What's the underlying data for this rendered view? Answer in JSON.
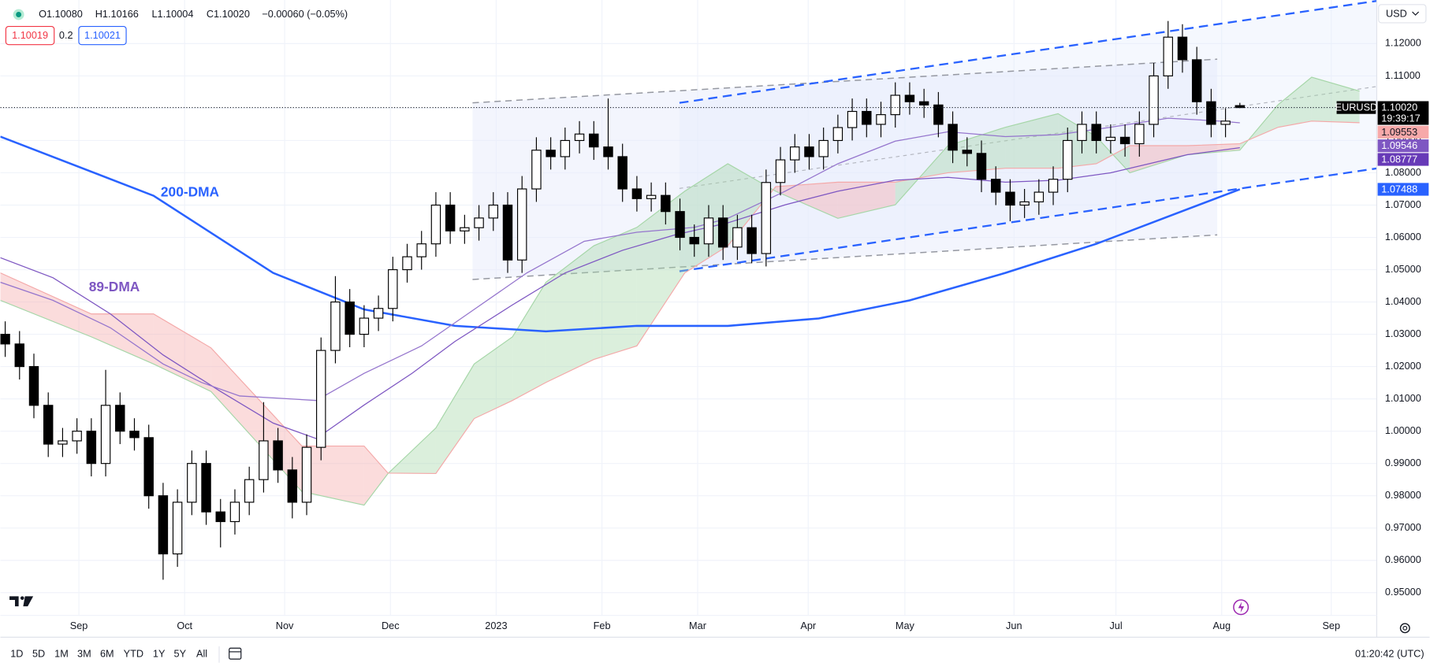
{
  "chart_data": {
    "type": "candlestick",
    "header": {
      "ohlc": [
        "O1.10080",
        "H1.10166",
        "L1.10004",
        "C1.10020",
        "−0.00060 (−0.05%)"
      ],
      "bid": "1.10019",
      "spread": "0.2",
      "ask": "1.10021",
      "currency": "USD"
    },
    "xlim": [
      0,
      287.6
    ],
    "ylim": [
      0.9362,
      1.1335
    ],
    "grid": true,
    "xticks": [
      {
        "value": 16.4,
        "label": "Sep"
      },
      {
        "value": 38.5,
        "label": "Oct"
      },
      {
        "value": 59.4,
        "label": "Nov"
      },
      {
        "value": 81.5,
        "label": "Dec"
      },
      {
        "value": 103.6,
        "label": "2023"
      },
      {
        "value": 125.7,
        "label": "Feb"
      },
      {
        "value": 145.7,
        "label": "Mar"
      },
      {
        "value": 168.8,
        "label": "Apr"
      },
      {
        "value": 189,
        "label": "May"
      },
      {
        "value": 211.8,
        "label": "Jun"
      },
      {
        "value": 233.1,
        "label": "Jul"
      },
      {
        "value": 255.2,
        "label": "Aug"
      },
      {
        "value": 278.1,
        "label": "Sep"
      }
    ],
    "yticks": [
      {
        "value": 0.95,
        "label": "0.95000"
      },
      {
        "value": 0.96,
        "label": "0.96000"
      },
      {
        "value": 0.97,
        "label": "0.97000"
      },
      {
        "value": 0.98,
        "label": "0.98000"
      },
      {
        "value": 0.99,
        "label": "0.99000"
      },
      {
        "value": 1.0,
        "label": "1.00000"
      },
      {
        "value": 1.01,
        "label": "1.01000"
      },
      {
        "value": 1.02,
        "label": "1.02000"
      },
      {
        "value": 1.03,
        "label": "1.03000"
      },
      {
        "value": 1.04,
        "label": "1.04000"
      },
      {
        "value": 1.05,
        "label": "1.05000"
      },
      {
        "value": 1.06,
        "label": "1.06000"
      },
      {
        "value": 1.07,
        "label": "1.07000"
      },
      {
        "value": 1.08,
        "label": "1.08000"
      },
      {
        "value": 1.09,
        "label": "1.09000"
      },
      {
        "value": 1.1,
        "label": "1.10000"
      },
      {
        "value": 1.11,
        "label": "1.11000"
      },
      {
        "value": 1.12,
        "label": "1.12000"
      }
    ],
    "series": [
      {
        "name": "EURUSD",
        "up_color": "#ffffff",
        "down_color": "#000000",
        "x": [
          1,
          4,
          7,
          10,
          13,
          16,
          19,
          22,
          25,
          28,
          31,
          34,
          37,
          40,
          43,
          46,
          49,
          52,
          55,
          58,
          61,
          64,
          67,
          70,
          73,
          76,
          79,
          82,
          85,
          88,
          91,
          94,
          97,
          100,
          103,
          106,
          109,
          112,
          115,
          118,
          121,
          124,
          127,
          130,
          133,
          136,
          139,
          142,
          145,
          148,
          151,
          154,
          157,
          160,
          163,
          166,
          169,
          172,
          175,
          178,
          181,
          184,
          187,
          190,
          193,
          196,
          199,
          202,
          205,
          208,
          211,
          214,
          217,
          220,
          223,
          226,
          229,
          232,
          235,
          238,
          241,
          244,
          247,
          250,
          253,
          256,
          259
        ],
        "open": [
          1.03,
          1.027,
          1.02,
          1.008,
          0.996,
          0.997,
          1.0,
          0.99,
          1.008,
          1.0,
          0.998,
          0.98,
          0.962,
          0.978,
          0.99,
          0.975,
          0.972,
          0.978,
          0.985,
          0.997,
          0.988,
          0.978,
          0.995,
          1.025,
          1.04,
          1.03,
          1.035,
          1.038,
          1.05,
          1.054,
          1.058,
          1.07,
          1.062,
          1.063,
          1.066,
          1.07,
          1.053,
          1.075,
          1.087,
          1.085,
          1.09,
          1.092,
          1.088,
          1.085,
          1.075,
          1.072,
          1.073,
          1.068,
          1.06,
          1.058,
          1.066,
          1.057,
          1.063,
          1.055,
          1.077,
          1.084,
          1.088,
          1.085,
          1.09,
          1.094,
          1.099,
          1.095,
          1.098,
          1.104,
          1.102,
          1.101,
          1.095,
          1.087,
          1.086,
          1.078,
          1.074,
          1.07,
          1.071,
          1.074,
          1.078,
          1.09,
          1.095,
          1.09,
          1.091,
          1.089,
          1.095,
          1.11,
          1.122,
          1.115,
          1.102,
          1.095,
          1.1008
        ],
        "high": [
          1.034,
          1.031,
          1.024,
          1.012,
          1.001,
          1.004,
          1.004,
          1.019,
          1.012,
          1.004,
          1.002,
          0.984,
          0.982,
          0.994,
          0.994,
          0.979,
          0.982,
          0.989,
          1.009,
          1.001,
          0.992,
          0.999,
          1.029,
          1.048,
          1.044,
          1.039,
          1.042,
          1.054,
          1.058,
          1.062,
          1.074,
          1.074,
          1.067,
          1.07,
          1.074,
          1.074,
          1.079,
          1.091,
          1.091,
          1.094,
          1.096,
          1.096,
          1.103,
          1.089,
          1.079,
          1.077,
          1.077,
          1.072,
          1.064,
          1.07,
          1.07,
          1.067,
          1.067,
          1.081,
          1.088,
          1.092,
          1.092,
          1.094,
          1.098,
          1.103,
          1.103,
          1.102,
          1.108,
          1.108,
          1.106,
          1.105,
          1.099,
          1.091,
          1.09,
          1.082,
          1.078,
          1.075,
          1.078,
          1.082,
          1.094,
          1.099,
          1.099,
          1.095,
          1.095,
          1.099,
          1.114,
          1.127,
          1.126,
          1.119,
          1.106,
          1.1,
          1.10166
        ],
        "low": [
          1.023,
          1.016,
          1.004,
          0.992,
          0.992,
          0.993,
          0.986,
          0.986,
          0.996,
          0.994,
          0.976,
          0.954,
          0.958,
          0.974,
          0.971,
          0.964,
          0.968,
          0.974,
          0.981,
          0.984,
          0.973,
          0.974,
          0.991,
          1.021,
          1.026,
          1.026,
          1.031,
          1.034,
          1.046,
          1.05,
          1.054,
          1.058,
          1.058,
          1.059,
          1.062,
          1.049,
          1.049,
          1.071,
          1.081,
          1.081,
          1.086,
          1.084,
          1.081,
          1.071,
          1.068,
          1.068,
          1.064,
          1.056,
          1.054,
          1.054,
          1.053,
          1.053,
          1.052,
          1.051,
          1.073,
          1.08,
          1.081,
          1.081,
          1.086,
          1.09,
          1.091,
          1.091,
          1.094,
          1.098,
          1.097,
          1.091,
          1.083,
          1.082,
          1.074,
          1.07,
          1.065,
          1.066,
          1.067,
          1.07,
          1.074,
          1.086,
          1.086,
          1.086,
          1.085,
          1.085,
          1.091,
          1.106,
          1.111,
          1.098,
          1.091,
          1.091,
          1.10004
        ],
        "close": [
          1.027,
          1.02,
          1.008,
          0.996,
          0.997,
          1.0,
          0.99,
          1.008,
          1.0,
          0.998,
          0.98,
          0.962,
          0.978,
          0.99,
          0.975,
          0.972,
          0.978,
          0.985,
          0.997,
          0.988,
          0.978,
          0.995,
          1.025,
          1.04,
          1.03,
          1.035,
          1.038,
          1.05,
          1.054,
          1.058,
          1.07,
          1.062,
          1.063,
          1.066,
          1.07,
          1.053,
          1.075,
          1.087,
          1.085,
          1.09,
          1.092,
          1.088,
          1.085,
          1.075,
          1.072,
          1.073,
          1.068,
          1.06,
          1.058,
          1.066,
          1.057,
          1.063,
          1.055,
          1.077,
          1.084,
          1.088,
          1.085,
          1.09,
          1.094,
          1.099,
          1.095,
          1.098,
          1.104,
          1.102,
          1.101,
          1.095,
          1.087,
          1.086,
          1.078,
          1.074,
          1.07,
          1.071,
          1.074,
          1.078,
          1.09,
          1.095,
          1.09,
          1.091,
          1.089,
          1.095,
          1.11,
          1.122,
          1.115,
          1.102,
          1.095,
          1.096,
          1.1002
        ]
      }
    ],
    "lines": [
      {
        "name": "200-DMA",
        "color": "#2962ff",
        "width": 2.2,
        "x": [
          0,
          32,
          57,
          76,
          95,
          114,
          133,
          152,
          171,
          190,
          210,
          229,
          248,
          259
        ],
        "values": [
          1.0912,
          1.0729,
          1.049,
          1.0377,
          1.0326,
          1.0309,
          1.0326,
          1.0326,
          1.0349,
          1.0405,
          1.049,
          1.058,
          1.0687,
          1.07488
        ]
      },
      {
        "name": "89-DMA",
        "color": "#7e57c2",
        "width": 1.1,
        "x": [
          0,
          11,
          23,
          34,
          46,
          57,
          66,
          76,
          86,
          95,
          107,
          118,
          130,
          141,
          152,
          164,
          175,
          187,
          198,
          210,
          221,
          232,
          248,
          259
        ],
        "values": [
          1.0537,
          1.0475,
          1.0363,
          1.0236,
          1.0123,
          1.0025,
          0.9977,
          1.0081,
          1.0179,
          1.0278,
          1.0391,
          1.049,
          1.056,
          1.0608,
          1.0645,
          1.0701,
          1.0743,
          1.0777,
          1.0786,
          1.0771,
          1.0777,
          1.08,
          1.0856,
          1.08777
        ]
      },
      {
        "color": "#9575cd",
        "width": 1.1,
        "x": [
          0,
          11,
          23,
          34,
          42,
          50,
          57,
          66,
          76,
          88,
          99,
          110,
          122,
          133,
          145,
          152,
          164,
          175,
          187,
          198,
          210,
          221,
          232,
          244,
          255,
          259
        ],
        "values": [
          1.0461,
          1.0405,
          1.032,
          1.0208,
          1.0151,
          1.0109,
          1.0103,
          1.0095,
          1.0179,
          1.0264,
          1.0377,
          1.049,
          1.0588,
          1.0616,
          1.0631,
          1.0659,
          1.0743,
          1.0828,
          1.0898,
          1.0927,
          1.0912,
          1.0918,
          1.0941,
          1.0969,
          1.096,
          1.09546
        ]
      }
    ],
    "cloud": {
      "up_color": "#a5d6a7",
      "down_color": "#f4a8a8",
      "x": [
        0,
        19,
        32,
        44,
        63,
        76,
        81,
        91,
        99,
        107,
        114,
        124,
        133,
        143,
        152,
        162,
        175,
        187,
        198,
        210,
        221,
        229,
        236,
        248,
        259,
        267,
        274,
        284
      ],
      "span_a": [
        1.0405,
        1.0292,
        1.0208,
        1.0123,
        0.9813,
        0.9771,
        0.9869,
        1.001,
        1.0208,
        1.0292,
        1.0461,
        1.0574,
        1.0631,
        1.0743,
        1.0828,
        1.0743,
        1.0659,
        1.0701,
        1.0884,
        1.0941,
        1.0983,
        1.0912,
        1.08,
        1.0856,
        1.087,
        1.1011,
        1.1096,
        1.1053
      ],
      "span_b": [
        1.049,
        1.0363,
        1.0363,
        1.0258,
        0.9954,
        0.9954,
        0.987,
        0.9869,
        1.0039,
        1.0095,
        1.0151,
        1.0222,
        1.0264,
        1.049,
        1.0574,
        1.0757,
        1.0771,
        1.0771,
        1.08,
        1.0814,
        1.0814,
        1.0828,
        1.0884,
        1.0884,
        1.089,
        1.0941,
        1.096,
        1.0955
      ]
    },
    "price_labels": [
      {
        "value": 1.1002,
        "label": "1.10020",
        "color": "#000000",
        "text_color": "#ffffff"
      },
      {
        "value": 1.09553,
        "label": "1.09553",
        "color": "#f7a9a9",
        "text_color": "#131722"
      },
      {
        "value": 1.09546,
        "label": "1.09546",
        "color": "#7e57c2",
        "text_color": "#ffffff"
      },
      {
        "value": 1.08777,
        "label": "1.08777",
        "color": "#673ab7",
        "text_color": "#ffffff"
      },
      {
        "value": 1.07488,
        "label": "1.07488",
        "color": "#2962ff",
        "text_color": "#ffffff"
      }
    ],
    "countdown": "19:39:17",
    "toolbar": {
      "ranges": [
        "1D",
        "5D",
        "1M",
        "3M",
        "6M",
        "YTD",
        "1Y",
        "5Y",
        "All"
      ],
      "clock": "01:20:42 (UTC)"
    }
  }
}
